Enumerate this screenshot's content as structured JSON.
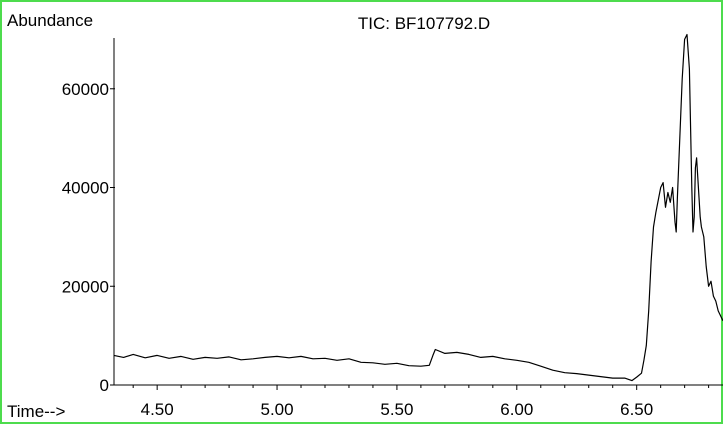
{
  "colors": {
    "frame_border": "#4ddc4d",
    "axis": "#000000",
    "trace": "#000000",
    "background": "#ffffff"
  },
  "chart_data": {
    "type": "line",
    "title": "TIC: BF107792.D",
    "ylabel": "Abundance",
    "xlabel": "Time-->",
    "xlim": [
      4.32,
      6.86
    ],
    "ylim": [
      0,
      71500
    ],
    "x_ticks": [
      4.5,
      5.0,
      5.5,
      6.0,
      6.5
    ],
    "x_tick_labels": [
      "4.50",
      "5.00",
      "5.50",
      "6.00",
      "6.50"
    ],
    "y_ticks": [
      0,
      20000,
      40000,
      60000
    ],
    "y_tick_labels": [
      "0",
      "20000",
      "40000",
      "60000"
    ],
    "grid": false,
    "legend": "none",
    "series": [
      {
        "x": [
          4.32,
          4.36,
          4.4,
          4.45,
          4.5,
          4.55,
          4.6,
          4.65,
          4.7,
          4.75,
          4.8,
          4.85,
          4.9,
          4.95,
          5.0,
          5.05,
          5.1,
          5.15,
          5.2,
          5.25,
          5.3,
          5.35,
          5.4,
          5.45,
          5.5,
          5.55,
          5.6,
          5.635,
          5.65,
          5.66,
          5.7,
          5.75,
          5.8,
          5.85,
          5.9,
          5.95,
          6.0,
          6.05,
          6.1,
          6.15,
          6.2,
          6.25,
          6.3,
          6.35,
          6.4,
          6.45,
          6.48,
          6.5,
          6.52,
          6.53,
          6.54,
          6.55,
          6.56,
          6.57,
          6.58,
          6.59,
          6.6,
          6.61,
          6.62,
          6.63,
          6.64,
          6.65,
          6.66,
          6.665,
          6.67,
          6.68,
          6.69,
          6.7,
          6.71,
          6.72,
          6.725,
          6.73,
          6.735,
          6.74,
          6.745,
          6.75,
          6.755,
          6.76,
          6.765,
          6.77,
          6.78,
          6.79,
          6.8,
          6.81,
          6.82,
          6.83,
          6.84,
          6.85,
          6.86
        ],
        "y": [
          6000,
          5600,
          6200,
          5500,
          6000,
          5400,
          5800,
          5200,
          5600,
          5400,
          5700,
          5100,
          5300,
          5600,
          5800,
          5500,
          5800,
          5300,
          5400,
          5000,
          5300,
          4600,
          4500,
          4200,
          4400,
          3900,
          3800,
          4000,
          6000,
          7200,
          6400,
          6600,
          6200,
          5600,
          5800,
          5300,
          5000,
          4600,
          3800,
          3000,
          2500,
          2300,
          2000,
          1700,
          1400,
          1400,
          900,
          1600,
          2400,
          5000,
          8000,
          15000,
          25000,
          32000,
          35000,
          37500,
          40000,
          41000,
          36000,
          39000,
          37000,
          40000,
          33000,
          31000,
          38000,
          50000,
          62000,
          70000,
          71000,
          64000,
          52000,
          40000,
          31000,
          34000,
          44000,
          46000,
          42000,
          38000,
          34000,
          32000,
          30000,
          24000,
          20000,
          21000,
          18000,
          17000,
          15000,
          14000,
          13000
        ]
      }
    ]
  }
}
